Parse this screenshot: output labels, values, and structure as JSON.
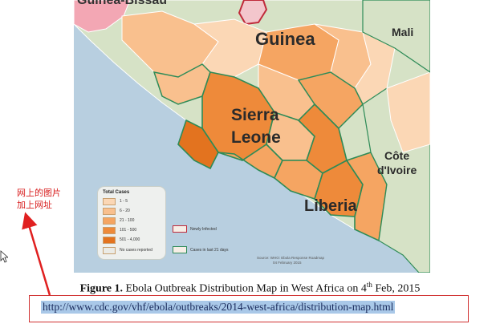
{
  "map": {
    "labels": {
      "guinea_bissau": "Guinea-Bissau",
      "guinea": "Guinea",
      "mali": "Mali",
      "sierra": "Sierra",
      "leone": "Leone",
      "cote": "Côte",
      "divoire": "d'Ivoire",
      "liberia": "Liberia"
    },
    "legend": {
      "title": "Total Cases",
      "items": [
        {
          "label": "1 - 5",
          "color": "#fbd7b5"
        },
        {
          "label": "6 - 20",
          "color": "#f9c08e"
        },
        {
          "label": "21 - 100",
          "color": "#f5a562"
        },
        {
          "label": "101 - 500",
          "color": "#ee8a3a"
        },
        {
          "label": "501 - 4,000",
          "color": "#e3731f"
        },
        {
          "label": "No cases reported",
          "color": "#ebebe6"
        }
      ]
    },
    "status_keys": {
      "newly_infected": "Newly Infected",
      "cases_last_21": "Cases in last 21 days"
    },
    "source_line1": "Source:  WHO: Ebola Response Roadmap",
    "source_line2": "04 February 2015",
    "colors": {
      "sea": "#b8cfe0",
      "land_no_cases": "#d6e2c6",
      "newly_infected_border": "#c02a3a",
      "cases_21_border": "#2e8b57"
    }
  },
  "caption": {
    "figure_label": "Figure 1.",
    "text": " Ebola Outbreak Distribution Map in West Africa on 4",
    "superscript": "th",
    "text_end": " Feb, 2015"
  },
  "url": "http://www.cdc.gov/vhf/ebola/outbreaks/2014-west-africa/distribution-map.html",
  "annotation": {
    "line1": "网上的图片",
    "line2": "加上网址"
  }
}
